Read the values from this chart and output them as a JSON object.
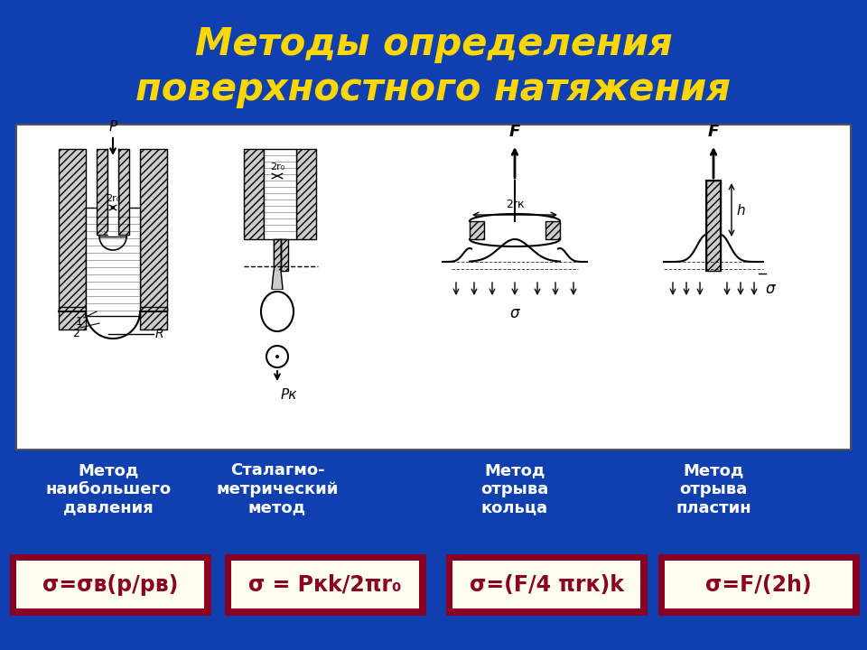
{
  "title_line1": "Методы определения",
  "title_line2": "поверхностного натяжения",
  "title_color": "#FFD700",
  "background_color": "#1040b0",
  "diagram_bg": "#ffffff",
  "diagram_border": "#555555",
  "methods": [
    "Метод\nнаибольшего\nдавления",
    "Сталагмо-\nметрический\nметод",
    "Метод\nотрыва\nкольца",
    "Метод\nотрыва\nпластин"
  ],
  "formulas": [
    "σ=σв(p/pв)",
    "σ = Pкk/2πr₀",
    "σ=(F/4 πrк)k",
    "σ=F/(2h)"
  ],
  "formula_bg": "#fffff0",
  "formula_border": "#8b0020",
  "formula_text_color": "#8b0020",
  "methods_text_color": "#ffffff",
  "title_fontsize": 30,
  "method_fontsize": 13,
  "formula_fontsize": 17
}
